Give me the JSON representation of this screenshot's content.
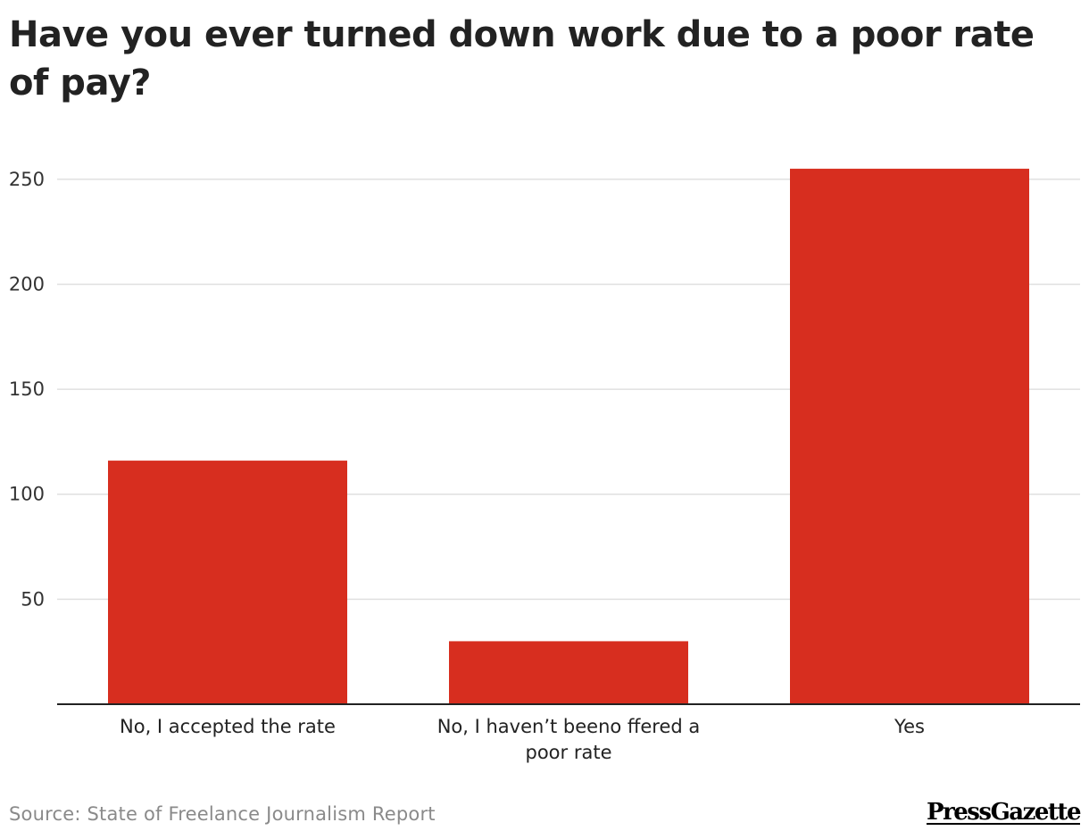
{
  "title": "Have you ever turned down work due to a poor rate of pay?",
  "source": "Source: State of Freelance Journalism Report",
  "logo_text": "PressGazette",
  "colors": {
    "bar": "#d72e1f",
    "gridline": "#e0e0e0",
    "baseline": "#222222"
  },
  "chart_data": {
    "type": "bar",
    "title": "Have you ever turned down work due to a poor rate of pay?",
    "categories": [
      "No, I accepted the rate",
      "No, I haven’t beeno ffered a poor rate",
      "Yes"
    ],
    "values": [
      116,
      30,
      255
    ],
    "ylim": [
      0,
      275
    ],
    "yticks": [
      50,
      100,
      150,
      200,
      250
    ],
    "grid": true,
    "xlabel": "",
    "ylabel": ""
  }
}
